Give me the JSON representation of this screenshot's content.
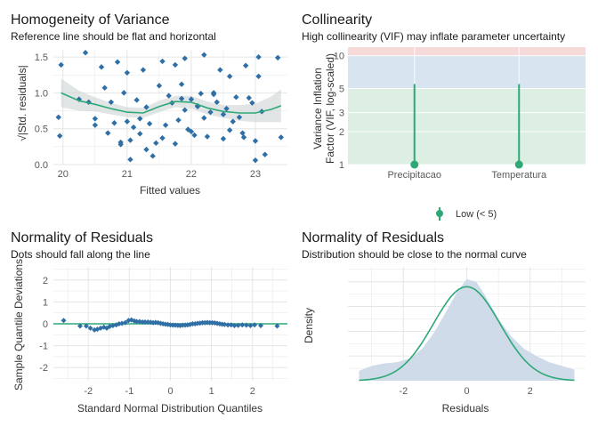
{
  "colors": {
    "point": "#2f6fa5",
    "line": "#2ca977",
    "band": "#cfd3d3",
    "grid": "#e4e6e6",
    "tick": "#5a5a5a",
    "title": "#1a1a1a",
    "vif_low_band": "#ddeee3",
    "vif_mod_band": "#d8e4ef",
    "vif_high_band": "#f6dada",
    "density_fill": "#cfdbe9"
  },
  "chart_data": [
    {
      "type": "scatter",
      "title": "Homogeneity of Variance",
      "subtitle": "Reference line should be flat and horizontal",
      "xlabel": "Fitted values",
      "ylabel": "√|Std. residuals|",
      "xlim": [
        19.85,
        23.5
      ],
      "ylim": [
        0,
        1.6
      ],
      "xticks": [
        "20",
        "21",
        "22",
        "23"
      ],
      "yticks": [
        "0.0",
        "0.5",
        "1.0",
        "1.5"
      ],
      "points": [
        [
          19.97,
          1.39
        ],
        [
          19.93,
          0.66
        ],
        [
          19.95,
          0.4
        ],
        [
          20.25,
          0.91
        ],
        [
          20.35,
          1.56
        ],
        [
          20.4,
          0.87
        ],
        [
          20.5,
          0.64
        ],
        [
          20.5,
          0.55
        ],
        [
          20.6,
          1.36
        ],
        [
          20.65,
          1.07
        ],
        [
          20.7,
          0.44
        ],
        [
          20.75,
          0.87
        ],
        [
          20.8,
          0.58
        ],
        [
          20.85,
          1.43
        ],
        [
          20.9,
          0.31
        ],
        [
          20.9,
          0.28
        ],
        [
          20.95,
          1.0
        ],
        [
          21.0,
          0.6
        ],
        [
          21.0,
          1.28
        ],
        [
          21.05,
          0.34
        ],
        [
          21.05,
          0.07
        ],
        [
          21.1,
          0.52
        ],
        [
          21.15,
          0.9
        ],
        [
          21.2,
          0.64
        ],
        [
          21.2,
          0.43
        ],
        [
          21.25,
          1.32
        ],
        [
          21.3,
          0.8
        ],
        [
          21.3,
          0.21
        ],
        [
          21.35,
          0.57
        ],
        [
          21.4,
          0.12
        ],
        [
          21.45,
          0.3
        ],
        [
          21.5,
          1.1
        ],
        [
          21.55,
          1.44
        ],
        [
          21.55,
          0.37
        ],
        [
          21.6,
          0.55
        ],
        [
          21.65,
          0.96
        ],
        [
          21.7,
          0.86
        ],
        [
          21.75,
          0.29
        ],
        [
          21.75,
          1.39
        ],
        [
          21.8,
          0.62
        ],
        [
          21.85,
          0.92
        ],
        [
          21.85,
          1.12
        ],
        [
          21.9,
          1.48
        ],
        [
          21.9,
          0.76
        ],
        [
          21.95,
          0.49
        ],
        [
          22.0,
          0.46
        ],
        [
          22.0,
          0.91
        ],
        [
          22.05,
          0.41
        ],
        [
          22.1,
          0.81
        ],
        [
          22.1,
          0.82
        ],
        [
          22.15,
          0.99
        ],
        [
          22.2,
          0.65
        ],
        [
          22.2,
          1.53
        ],
        [
          22.25,
          0.39
        ],
        [
          22.3,
          0.73
        ],
        [
          22.35,
          0.98
        ],
        [
          22.35,
          1.0
        ],
        [
          22.4,
          0.87
        ],
        [
          22.45,
          1.32
        ],
        [
          22.5,
          0.7
        ],
        [
          22.5,
          0.36
        ],
        [
          22.55,
          0.78
        ],
        [
          22.6,
          1.23
        ],
        [
          22.6,
          0.48
        ],
        [
          22.65,
          0.6
        ],
        [
          22.7,
          0.94
        ],
        [
          22.75,
          0.66
        ],
        [
          22.8,
          0.44
        ],
        [
          22.82,
          0.38
        ],
        [
          22.85,
          1.38
        ],
        [
          22.9,
          0.93
        ],
        [
          22.95,
          0.86
        ],
        [
          23.0,
          0.06
        ],
        [
          23.0,
          0.33
        ],
        [
          23.05,
          1.23
        ],
        [
          23.05,
          1.5
        ],
        [
          23.1,
          0.74
        ],
        [
          23.15,
          0.14
        ],
        [
          23.35,
          1.49
        ],
        [
          23.4,
          0.38
        ]
      ],
      "loess_fit": {
        "x": [
          19.97,
          20.25,
          20.5,
          20.75,
          21.0,
          21.25,
          21.5,
          21.75,
          22.0,
          22.25,
          22.5,
          22.75,
          23.0,
          23.25,
          23.4
        ],
        "y": [
          1.0,
          0.89,
          0.84,
          0.78,
          0.73,
          0.72,
          0.81,
          0.88,
          0.87,
          0.79,
          0.74,
          0.72,
          0.72,
          0.77,
          0.82
        ],
        "band": [
          0.2,
          0.14,
          0.1,
          0.08,
          0.07,
          0.07,
          0.08,
          0.08,
          0.09,
          0.09,
          0.09,
          0.11,
          0.13,
          0.18,
          0.23
        ]
      }
    },
    {
      "type": "scatter",
      "title": "Collinearity",
      "subtitle": "High collinearity (VIF) may inflate parameter uncertainty",
      "ylabel": [
        "Variance Inflation",
        "Factor (VIF, log-scaled)"
      ],
      "log_scale_y": true,
      "ylim": [
        1,
        12
      ],
      "yticks": [
        "1",
        "2",
        "3",
        "5",
        "10"
      ],
      "categories": [
        "Precipitacao",
        "Temperatura"
      ],
      "vif": [
        1.0,
        1.0
      ],
      "ci_upper": [
        5.5,
        5.5
      ],
      "bands": {
        "low": [
          1,
          5
        ],
        "moderate": [
          5,
          10
        ],
        "high": [
          10,
          12
        ]
      },
      "legend": {
        "label": "Low (< 5)",
        "position": "bottom"
      }
    },
    {
      "type": "scatter",
      "title": "Normality of Residuals",
      "subtitle": "Dots should fall along the line",
      "xlabel": "Standard Normal Distribution Quantiles",
      "ylabel": "Sample Quantile Deviations",
      "xlim": [
        -2.85,
        2.85
      ],
      "ylim": [
        -2.6,
        2.6
      ],
      "xticks": [
        "-2",
        "-1",
        "0",
        "1",
        "2"
      ],
      "yticks": [
        "-2",
        "-1",
        "0",
        "1",
        "2"
      ],
      "reference_y": 0,
      "points": [
        [
          -2.6,
          0.15
        ],
        [
          -2.2,
          -0.1
        ],
        [
          -2.05,
          -0.1
        ],
        [
          -1.95,
          -0.2
        ],
        [
          -1.85,
          -0.28
        ],
        [
          -1.78,
          -0.25
        ],
        [
          -1.7,
          -0.2
        ],
        [
          -1.62,
          -0.15
        ],
        [
          -1.55,
          -0.2
        ],
        [
          -1.48,
          -0.12
        ],
        [
          -1.4,
          -0.08
        ],
        [
          -1.32,
          -0.05
        ],
        [
          -1.25,
          0.0
        ],
        [
          -1.18,
          0.02
        ],
        [
          -1.1,
          0.05
        ],
        [
          -1.02,
          0.15
        ],
        [
          -0.95,
          0.18
        ],
        [
          -0.88,
          0.13
        ],
        [
          -0.82,
          0.1
        ],
        [
          -0.75,
          0.1
        ],
        [
          -0.68,
          0.08
        ],
        [
          -0.62,
          0.08
        ],
        [
          -0.55,
          0.08
        ],
        [
          -0.48,
          0.07
        ],
        [
          -0.42,
          0.05
        ],
        [
          -0.36,
          0.06
        ],
        [
          -0.3,
          0.05
        ],
        [
          -0.24,
          0.02
        ],
        [
          -0.18,
          0.0
        ],
        [
          -0.12,
          -0.02
        ],
        [
          -0.06,
          -0.03
        ],
        [
          0.0,
          -0.05
        ],
        [
          0.06,
          -0.06
        ],
        [
          0.12,
          -0.06
        ],
        [
          0.18,
          -0.07
        ],
        [
          0.24,
          -0.08
        ],
        [
          0.3,
          -0.06
        ],
        [
          0.36,
          -0.06
        ],
        [
          0.42,
          -0.05
        ],
        [
          0.48,
          -0.03
        ],
        [
          0.54,
          0.0
        ],
        [
          0.6,
          0.0
        ],
        [
          0.66,
          0.02
        ],
        [
          0.72,
          0.03
        ],
        [
          0.78,
          0.05
        ],
        [
          0.84,
          0.05
        ],
        [
          0.9,
          0.06
        ],
        [
          0.96,
          0.05
        ],
        [
          1.02,
          0.05
        ],
        [
          1.08,
          0.04
        ],
        [
          1.14,
          0.02
        ],
        [
          1.2,
          0.0
        ],
        [
          1.26,
          -0.02
        ],
        [
          1.32,
          -0.03
        ],
        [
          1.4,
          -0.05
        ],
        [
          1.48,
          -0.05
        ],
        [
          1.56,
          -0.08
        ],
        [
          1.65,
          -0.07
        ],
        [
          1.75,
          -0.05
        ],
        [
          1.85,
          -0.06
        ],
        [
          1.95,
          -0.08
        ],
        [
          2.05,
          -0.05
        ],
        [
          2.2,
          -0.08
        ],
        [
          2.6,
          -0.1
        ]
      ]
    },
    {
      "type": "area",
      "title": "Normality of Residuals",
      "subtitle": "Distribution should be close to the normal curve",
      "xlabel": "Residuals",
      "ylabel": "Density",
      "xlim": [
        -3.75,
        3.75
      ],
      "ylim": [
        0,
        0.46
      ],
      "xticks": [
        "-2",
        "0",
        "2"
      ],
      "empirical_density": {
        "x": [
          -3.4,
          -3.0,
          -2.6,
          -2.2,
          -1.8,
          -1.4,
          -1.0,
          -0.6,
          -0.3,
          0.0,
          0.3,
          0.6,
          1.0,
          1.4,
          1.8,
          2.2,
          2.6,
          3.0,
          3.4
        ],
        "y": [
          0.04,
          0.06,
          0.07,
          0.075,
          0.09,
          0.13,
          0.2,
          0.29,
          0.36,
          0.41,
          0.4,
          0.34,
          0.25,
          0.18,
          0.13,
          0.1,
          0.075,
          0.06,
          0.045
        ]
      },
      "normal_curve": {
        "mean": 0,
        "sd": 1.05,
        "x_range": [
          -3.4,
          3.4
        ]
      }
    }
  ]
}
